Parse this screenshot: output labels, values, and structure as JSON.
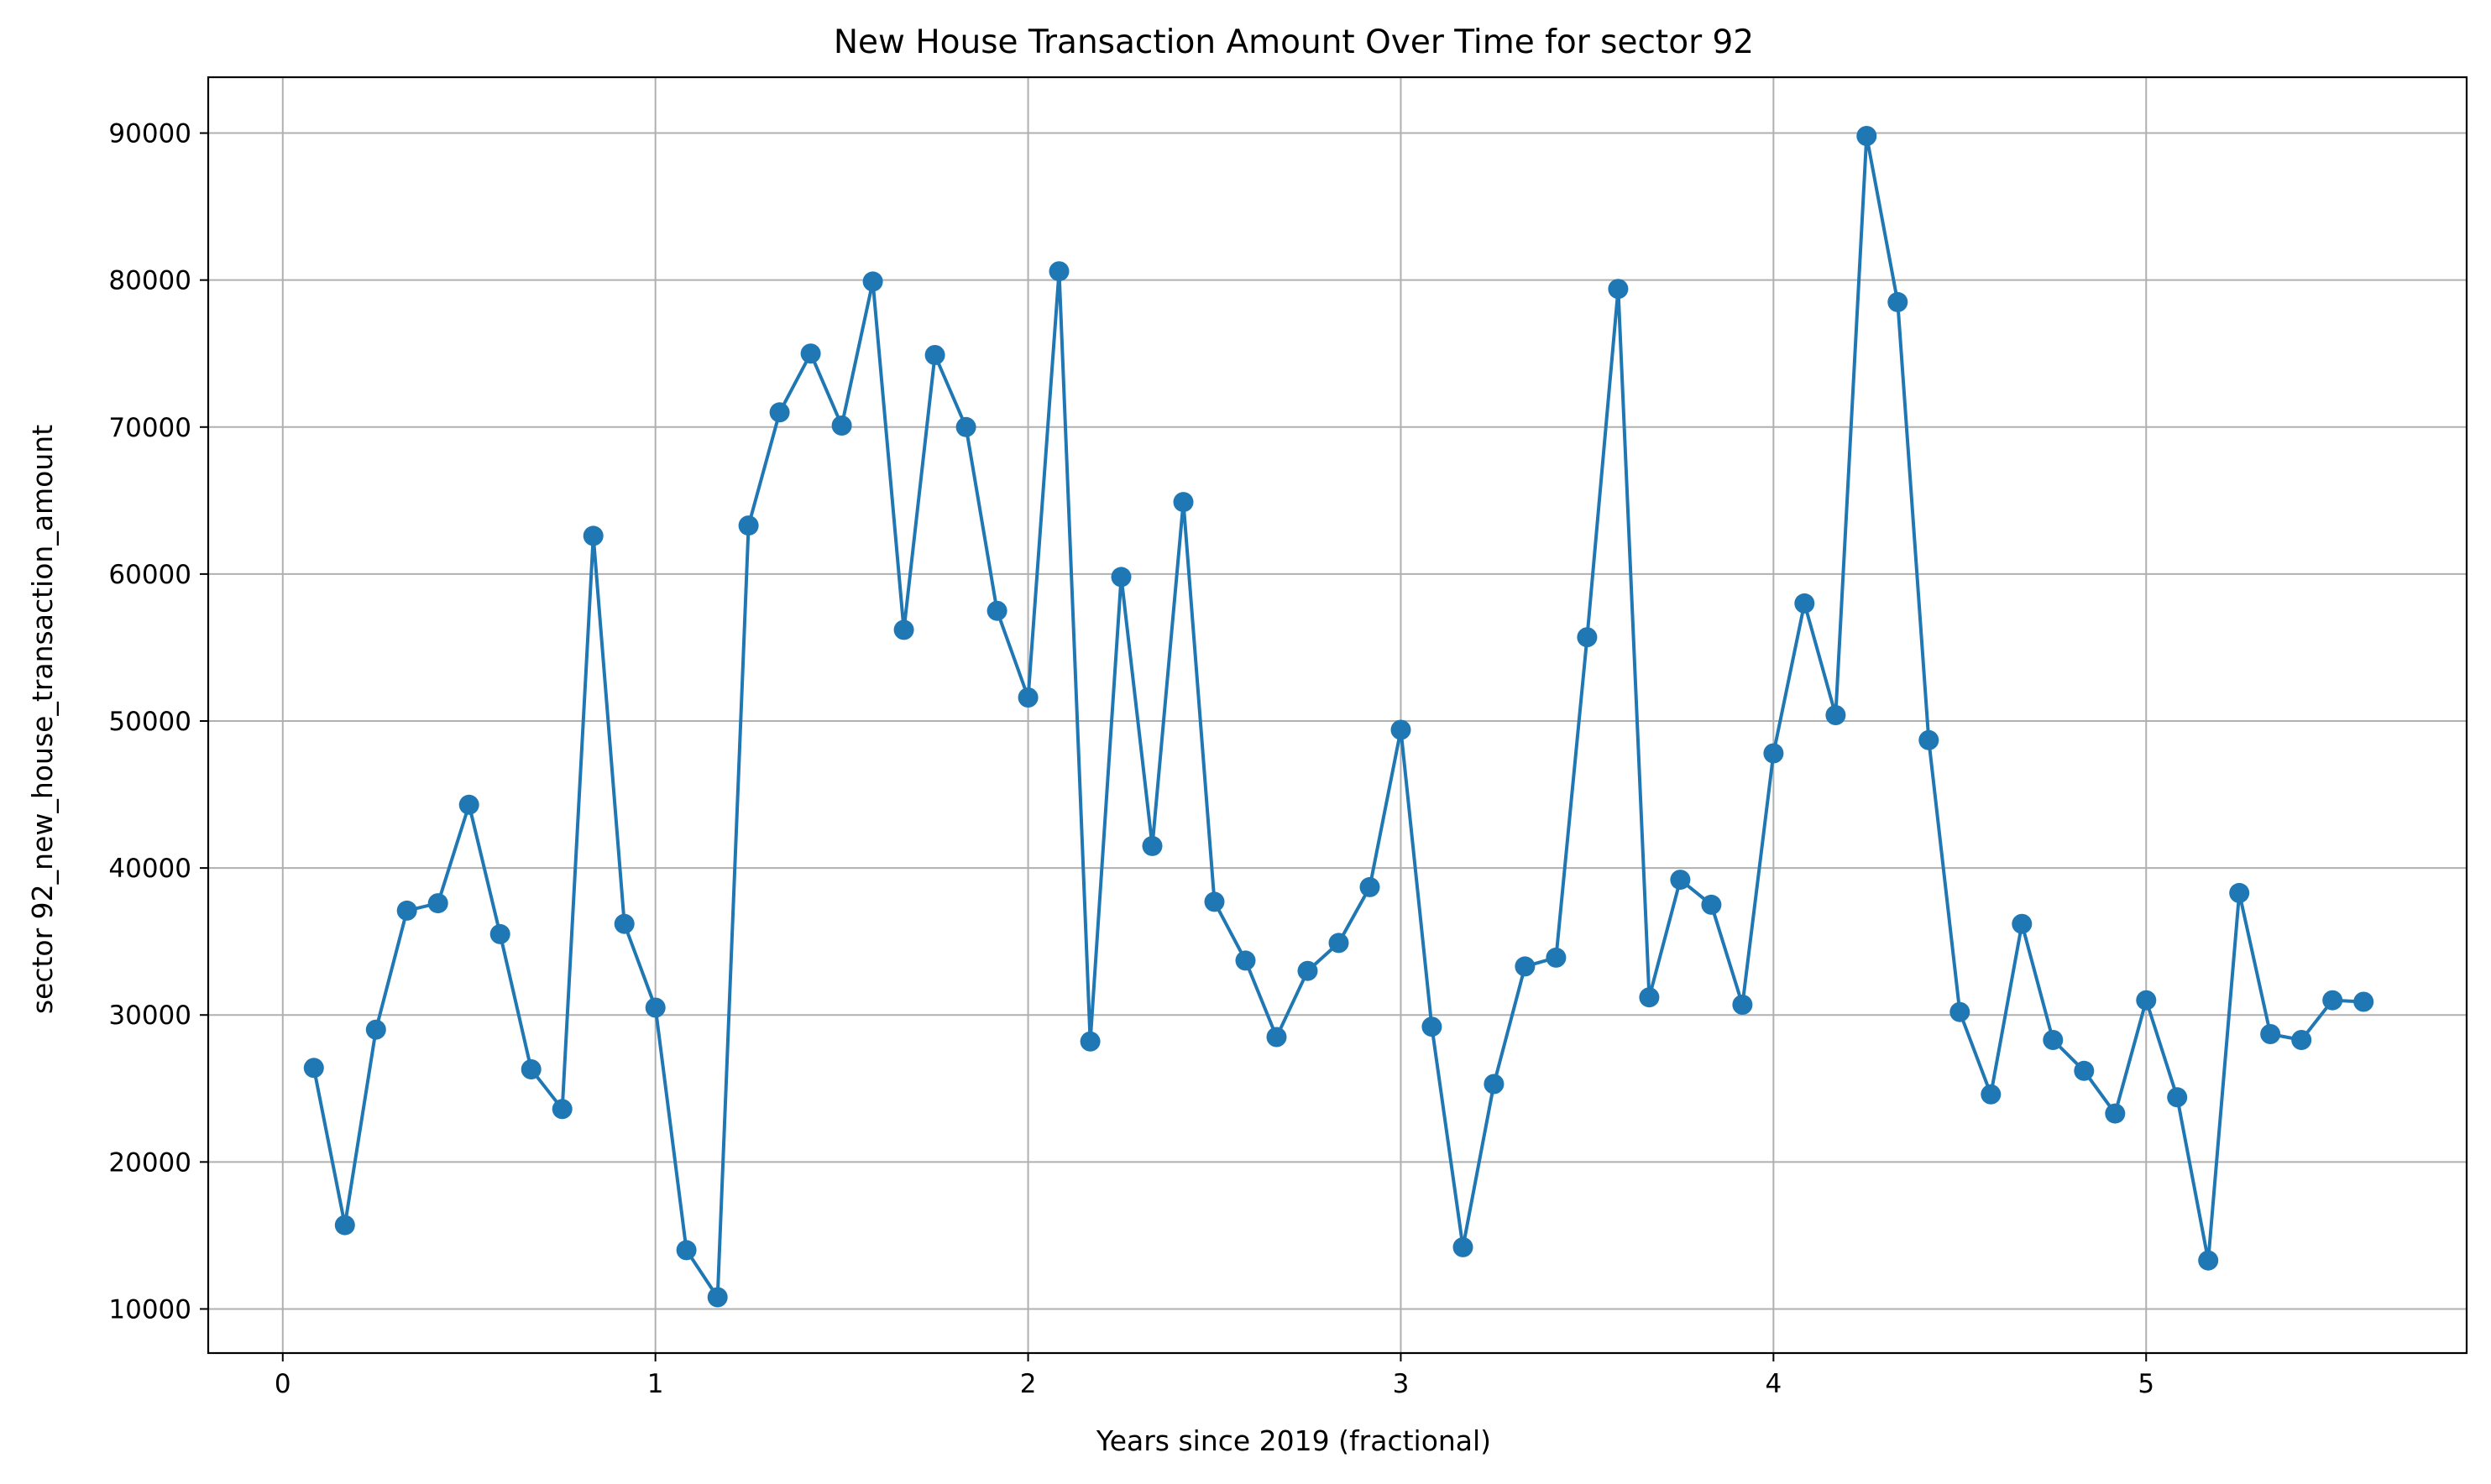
{
  "chart_data": {
    "type": "line",
    "title": "New House Transaction Amount Over Time for sector 92",
    "xlabel": "Years since 2019 (fractional)",
    "ylabel": "sector 92_new_house_transaction_amount",
    "xlim": [
      -0.2,
      5.86
    ],
    "ylim": [
      7000,
      93800
    ],
    "xticks": [
      0,
      1,
      2,
      3,
      4,
      5
    ],
    "yticks": [
      10000,
      20000,
      30000,
      40000,
      50000,
      60000,
      70000,
      80000,
      90000
    ],
    "grid": true,
    "line_color": "#1f77b4",
    "marker": "circle",
    "series": [
      {
        "x": [
          0.0833,
          0.1667,
          0.25,
          0.3333,
          0.4167,
          0.5,
          0.5833,
          0.6667,
          0.75,
          0.8333,
          0.9167,
          1.0,
          1.0833,
          1.1667,
          1.25,
          1.3333,
          1.4167,
          1.5,
          1.5833,
          1.6667,
          1.75,
          1.8333,
          1.9167,
          2.0,
          2.0833,
          2.1667,
          2.25,
          2.3333,
          2.4167,
          2.5,
          2.5833,
          2.6667,
          2.75,
          2.8333,
          2.9167,
          3.0,
          3.0833,
          3.1667,
          3.25,
          3.3333,
          3.4167,
          3.5,
          3.5833,
          3.6667,
          3.75,
          3.8333,
          3.9167,
          4.0,
          4.0833,
          4.1667,
          4.25,
          4.3333,
          4.4167,
          4.5,
          4.5833,
          4.6667,
          4.75,
          4.8333,
          4.9167,
          5.0,
          5.0833,
          5.1667,
          5.25,
          5.3333,
          5.4167,
          5.5,
          5.5833
        ],
        "y": [
          26400,
          15700,
          29000,
          37100,
          37600,
          44300,
          35500,
          26300,
          23600,
          62600,
          36200,
          30500,
          14000,
          10800,
          63300,
          71000,
          75000,
          70100,
          79900,
          56200,
          74900,
          70000,
          57500,
          51600,
          80600,
          28200,
          59800,
          41500,
          64900,
          37700,
          33700,
          28500,
          33000,
          34900,
          38700,
          49400,
          29200,
          14200,
          25300,
          33300,
          33900,
          55700,
          79400,
          31200,
          39200,
          37500,
          30700,
          47800,
          58000,
          50400,
          89800,
          78500,
          48700,
          30200,
          24600,
          36200,
          28300,
          26200,
          23300,
          31000,
          24400,
          13300,
          38300,
          28700,
          28300,
          31000,
          30900
        ]
      }
    ]
  }
}
